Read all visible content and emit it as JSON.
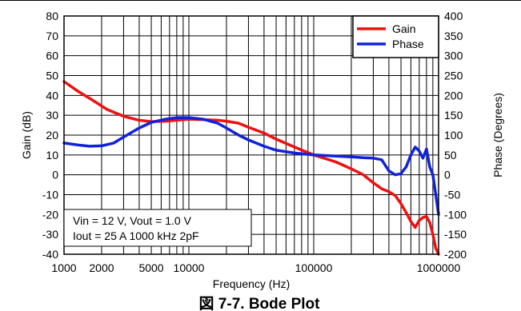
{
  "chart_data": {
    "type": "line",
    "title": "",
    "xlabel": "Frequency (Hz)",
    "ylabel": "Gain (dB)",
    "y2label": "Phase (Degrees)",
    "xscale": "log",
    "xlim": [
      1000,
      1000000
    ],
    "ylim": [
      -40,
      80
    ],
    "y2lim": [
      -200,
      400
    ],
    "grid": true,
    "xtick_labels": [
      "1000",
      "2000",
      "5000",
      "10000",
      "100000",
      "1000000"
    ],
    "xtick_values": [
      1000,
      2000,
      5000,
      10000,
      100000,
      1000000
    ],
    "ytick_labels": [
      "80",
      "70",
      "60",
      "50",
      "40",
      "30",
      "20",
      "10",
      "0",
      "-10",
      "-20",
      "-30",
      "-40"
    ],
    "y2tick_labels": [
      "400",
      "350",
      "300",
      "250",
      "200",
      "150",
      "100",
      "50",
      "0",
      "-50",
      "-100",
      "-150",
      "-200"
    ],
    "legend": {
      "position": "top-right",
      "entries": [
        "Gain",
        "Phase"
      ]
    },
    "annotation": [
      "Vin = 12 V, Vout = 1.0 V",
      "Iout = 25 A 1000 kHz 2pF"
    ],
    "series": [
      {
        "name": "Gain",
        "axis": "left",
        "color": "#ee1111",
        "x": [
          1000,
          1300,
          1700,
          2200,
          3000,
          4000,
          5000,
          6500,
          8000,
          10000,
          13000,
          17000,
          20000,
          25000,
          30000,
          40000,
          50000,
          70000,
          100000,
          150000,
          200000,
          250000,
          300000,
          350000,
          400000,
          450000,
          500000,
          550000,
          600000,
          650000,
          700000,
          750000,
          800000,
          850000,
          900000,
          950000,
          1000000
        ],
        "y": [
          47,
          42,
          37.5,
          33,
          29.5,
          27.5,
          26.8,
          27,
          27.5,
          28,
          27.8,
          27.5,
          27,
          26,
          24,
          21,
          18,
          14,
          10,
          6.5,
          3,
          0,
          -4,
          -7,
          -8.5,
          -10.5,
          -14.5,
          -19,
          -23.5,
          -26.5,
          -23,
          -21.5,
          -21,
          -24,
          -30,
          -37,
          -40
        ]
      },
      {
        "name": "Phase",
        "axis": "right",
        "color": "#1122dd",
        "x": [
          1000,
          1300,
          1600,
          2000,
          2500,
          3000,
          4000,
          5000,
          6500,
          8000,
          10000,
          13000,
          17000,
          20000,
          25000,
          30000,
          40000,
          50000,
          70000,
          100000,
          150000,
          200000,
          250000,
          300000,
          350000,
          400000,
          450000,
          500000,
          550000,
          600000,
          650000,
          700000,
          750000,
          800000,
          850000,
          900000,
          950000,
          1000000
        ],
        "y": [
          80,
          75,
          72,
          73,
          80,
          95,
          118,
          132,
          140,
          144,
          144,
          140,
          130,
          118,
          100,
          88,
          72,
          62,
          55,
          50,
          47,
          45,
          43,
          42,
          38,
          10,
          0,
          3,
          20,
          50,
          70,
          60,
          42,
          65,
          20,
          0,
          -50,
          -100
        ]
      }
    ]
  },
  "caption": "図 7-7. Bode Plot"
}
